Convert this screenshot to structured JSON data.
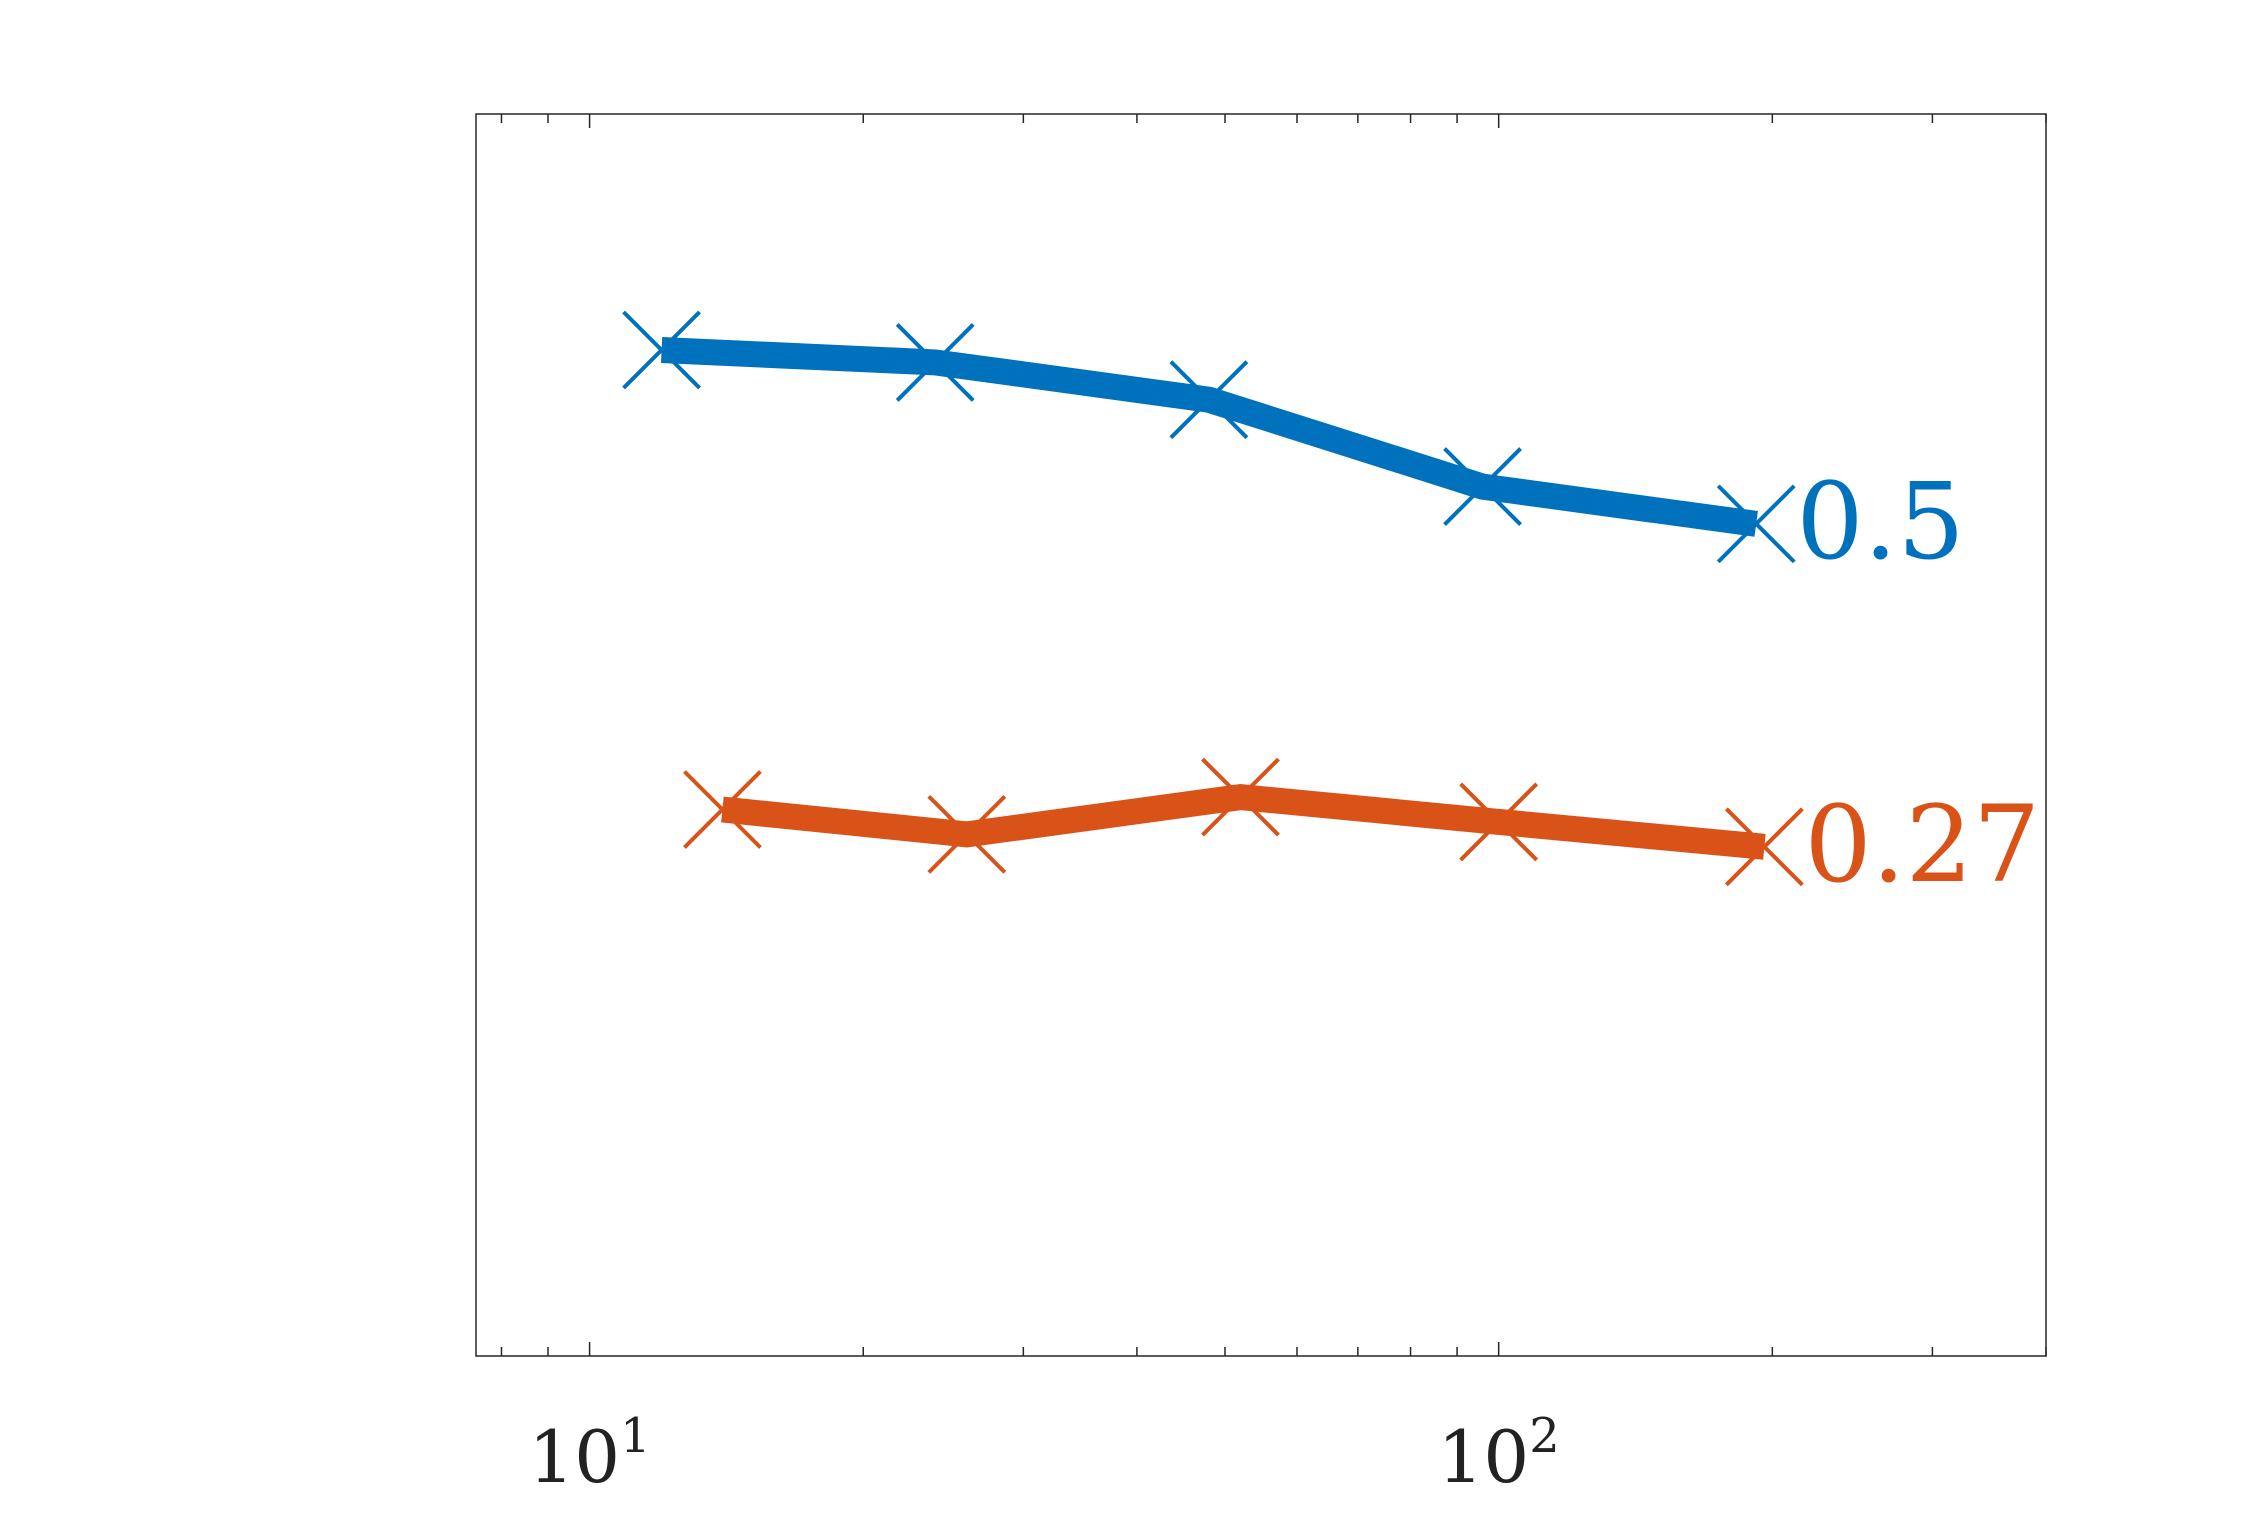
{
  "chart_data": {
    "type": "line",
    "x_scale": "log",
    "xlim": [
      7.5,
      400
    ],
    "ylim": [
      0,
      1
    ],
    "grid": false,
    "legend": "none",
    "x_ticks": [
      {
        "value": 10,
        "base": "10",
        "exponent": "1"
      },
      {
        "value": 100,
        "base": "10",
        "exponent": "2"
      }
    ],
    "series": [
      {
        "color": "#0072BD",
        "end_label": "0.5",
        "x": [
          12,
          24,
          48,
          96,
          192
        ],
        "y": [
          0.81,
          0.8,
          0.77,
          0.7,
          0.67
        ]
      },
      {
        "color": "#D95319",
        "end_label": "0.27",
        "x": [
          14,
          26,
          52,
          100,
          196
        ],
        "y": [
          0.44,
          0.42,
          0.45,
          0.43,
          0.41
        ]
      }
    ]
  }
}
